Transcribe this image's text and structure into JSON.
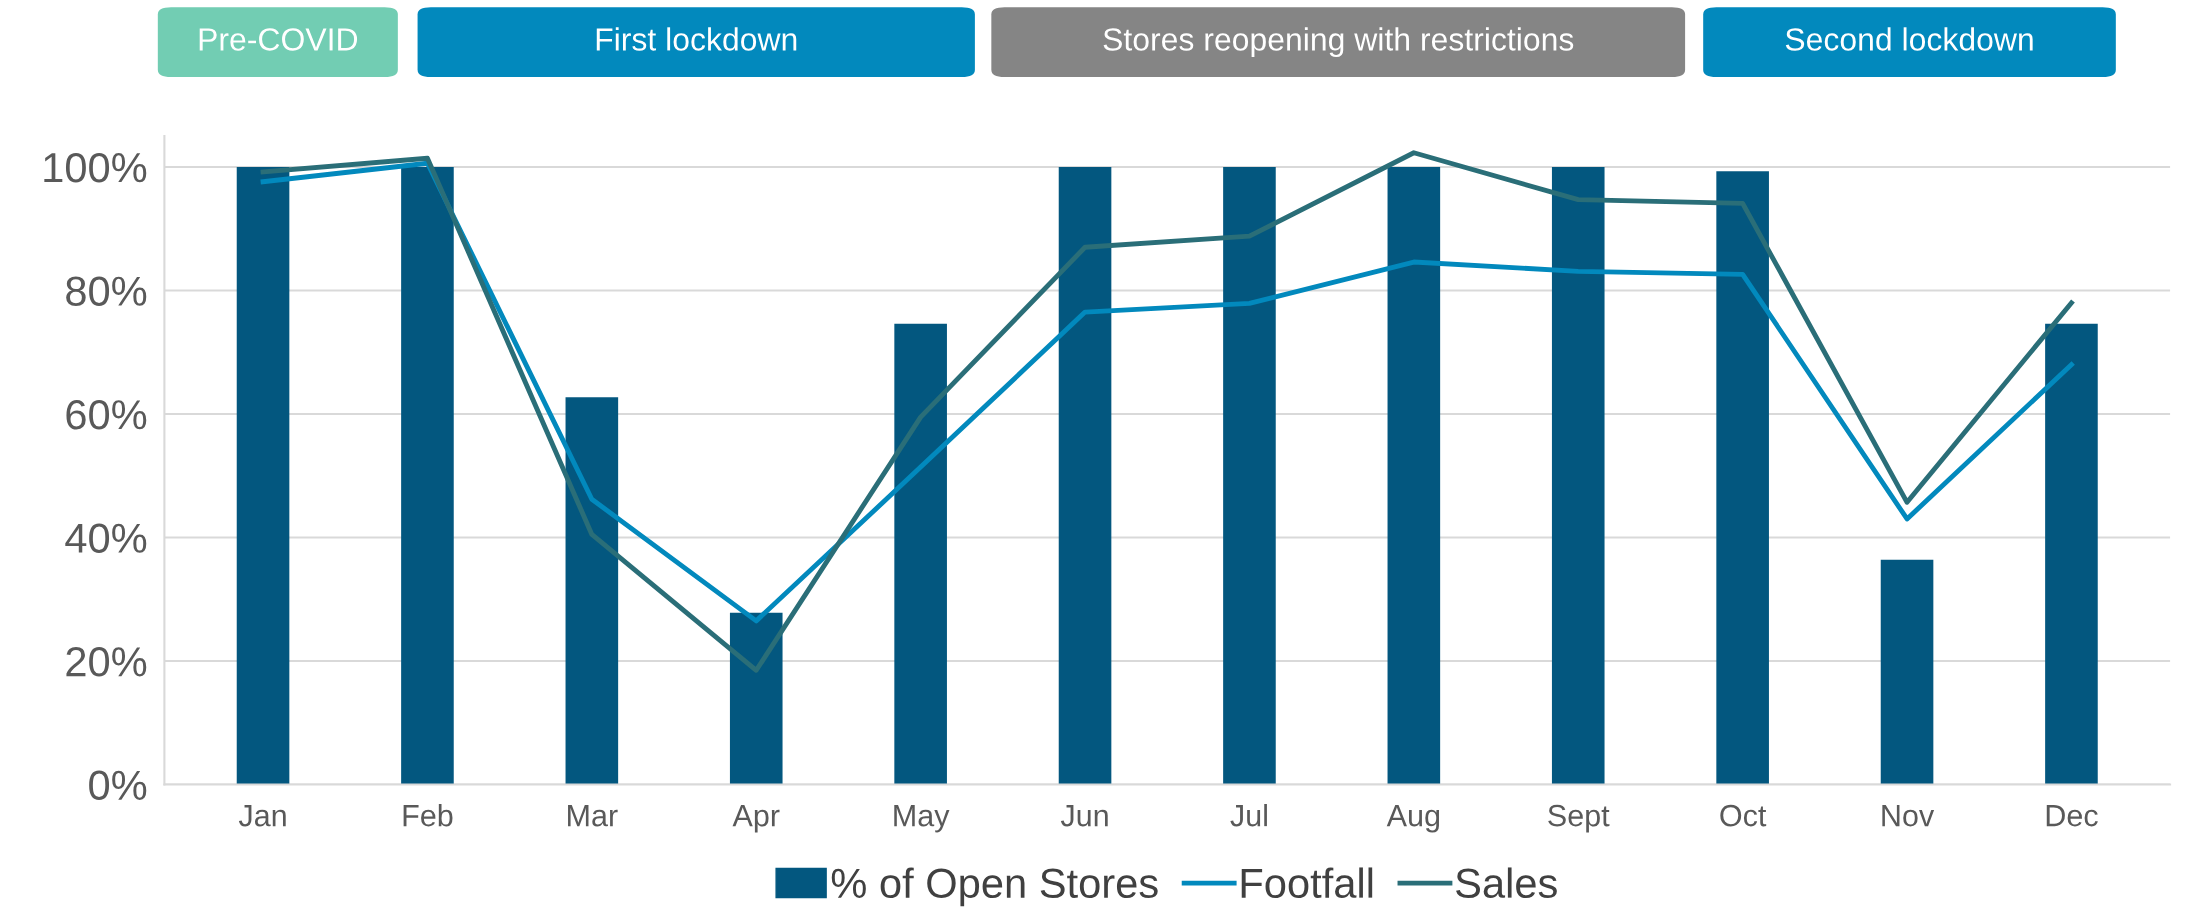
{
  "chart_data": {
    "type": "bar",
    "categories": [
      "Jan",
      "Feb",
      "Mar",
      "Apr",
      "May",
      "Jun",
      "Jul",
      "Aug",
      "Sept",
      "Oct",
      "Nov",
      "Dec"
    ],
    "series": [
      {
        "name": "% of Open Stores",
        "color": "#03577f",
        "values": [
          100,
          100,
          62.7,
          27.8,
          74.6,
          100,
          100,
          100,
          100,
          99.3,
          36.4,
          74.6
        ]
      },
      {
        "name": "Footfall",
        "type": "line",
        "color": "#0289bd",
        "values": [
          97.6,
          100.6,
          46.2,
          26.5,
          51.4,
          76.5,
          77.9,
          84.6,
          83.1,
          82.6,
          43.0,
          68.0
        ]
      },
      {
        "name": "Sales",
        "type": "line",
        "color": "#2a6e78",
        "values": [
          99.2,
          101.4,
          40.5,
          18.5,
          59.5,
          87.0,
          88.8,
          102.3,
          94.7,
          94.1,
          45.7,
          78.0
        ]
      }
    ],
    "ylim": [
      0,
      105
    ],
    "yticks": [
      {
        "value": 0,
        "label": "0%"
      },
      {
        "value": 20,
        "label": "20%"
      },
      {
        "value": 40,
        "label": "40%"
      },
      {
        "value": 60,
        "label": "60%"
      },
      {
        "value": 80,
        "label": "80%"
      },
      {
        "value": 100,
        "label": "100%"
      }
    ],
    "grid": "y",
    "legend": "bottom",
    "marker": "none",
    "line_style": "solid",
    "annotations": [
      "Pre-COVID",
      "First lockdown",
      "Stores reopening with restrictions",
      "Second lockdown"
    ]
  }
}
